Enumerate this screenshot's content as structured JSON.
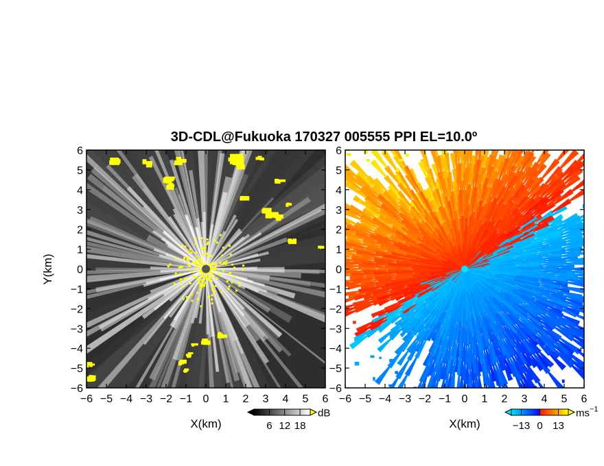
{
  "title": "3D-CDL@Fukuoka 170327 005555 PPI EL=10.0º",
  "chart_data": [
    {
      "type": "heatmap",
      "panel": "left",
      "field": "signal-to-noise ratio",
      "xlabel": "X(km)",
      "ylabel": "Y(km)",
      "xlim": [
        -6,
        6
      ],
      "ylim": [
        -6,
        6
      ],
      "xticks": [
        "−6",
        "−5",
        "−4",
        "−3",
        "−2",
        "−1",
        "0",
        "1",
        "2",
        "3",
        "4",
        "5",
        "6"
      ],
      "yticks": [
        "−6",
        "−5",
        "−4",
        "−3",
        "−2",
        "−1",
        "0",
        "1",
        "2",
        "3",
        "4",
        "5",
        "6"
      ],
      "colorbar": {
        "ticks": [
          "6",
          "12",
          "18"
        ],
        "values": [
          6,
          12,
          18
        ],
        "unit": "dB",
        "range": [
          0,
          22
        ],
        "colors": [
          "#000000",
          "#ffffff"
        ],
        "overflow_color": "#ffff00"
      },
      "highlight_color": "#ffff00",
      "radar_site": [
        0,
        0
      ]
    },
    {
      "type": "heatmap",
      "panel": "right",
      "field": "radial velocity",
      "xlabel": "X(km)",
      "xlim": [
        -6,
        6
      ],
      "ylim": [
        -6,
        6
      ],
      "xticks": [
        "−6",
        "−5",
        "−4",
        "−3",
        "−2",
        "−1",
        "0",
        "1",
        "2",
        "3",
        "4",
        "5",
        "6"
      ],
      "yticks": [
        "−6",
        "−5",
        "−4",
        "−3",
        "−2",
        "−1",
        "0",
        "1",
        "2",
        "3",
        "4",
        "5",
        "6"
      ],
      "colorbar": {
        "ticks": [
          "−13",
          "0",
          "13"
        ],
        "values": [
          -13,
          0,
          13
        ],
        "unit": "ms",
        "unit_exponent": "−1",
        "range": [
          -20,
          20
        ],
        "colors": [
          "#00e5ff",
          "#0010ff",
          "#ff1a00",
          "#ffff00"
        ]
      },
      "wind_from_direction_deg": 300,
      "radar_site": [
        0,
        0
      ]
    }
  ]
}
